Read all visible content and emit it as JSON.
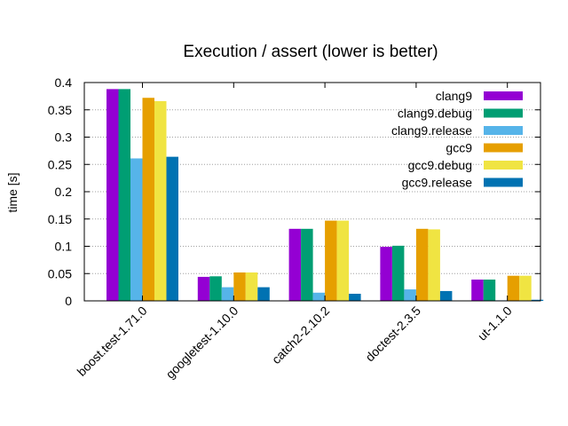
{
  "chart_data": {
    "type": "bar",
    "title": "Execution / assert (lower is better)",
    "xlabel": "",
    "ylabel": "time [s]",
    "ylim": [
      0,
      0.4
    ],
    "yticks": [
      "0",
      "0.05",
      "0.1",
      "0.15",
      "0.2",
      "0.25",
      "0.3",
      "0.35",
      "0.4"
    ],
    "grid": true,
    "legend_position": "top-right",
    "categories": [
      "boost.test-1.71.0",
      "googletest-1.10.0",
      "catch2-2.10.2",
      "doctest-2.3.5",
      "ut-1.1.0"
    ],
    "series": [
      {
        "name": "clang9",
        "color": "#9400d3",
        "values": [
          0.388,
          0.044,
          0.132,
          0.099,
          0.039
        ]
      },
      {
        "name": "clang9.debug",
        "color": "#009e73",
        "values": [
          0.388,
          0.045,
          0.132,
          0.101,
          0.039
        ]
      },
      {
        "name": "clang9.release",
        "color": "#56b4e9",
        "values": [
          0.261,
          0.025,
          0.015,
          0.021,
          0.001
        ]
      },
      {
        "name": "gcc9",
        "color": "#e69f00",
        "values": [
          0.372,
          0.052,
          0.147,
          0.132,
          0.046
        ]
      },
      {
        "name": "gcc9.debug",
        "color": "#f0e442",
        "values": [
          0.366,
          0.052,
          0.147,
          0.131,
          0.046
        ]
      },
      {
        "name": "gcc9.release",
        "color": "#0072b2",
        "values": [
          0.264,
          0.025,
          0.013,
          0.018,
          0.002
        ]
      }
    ]
  }
}
